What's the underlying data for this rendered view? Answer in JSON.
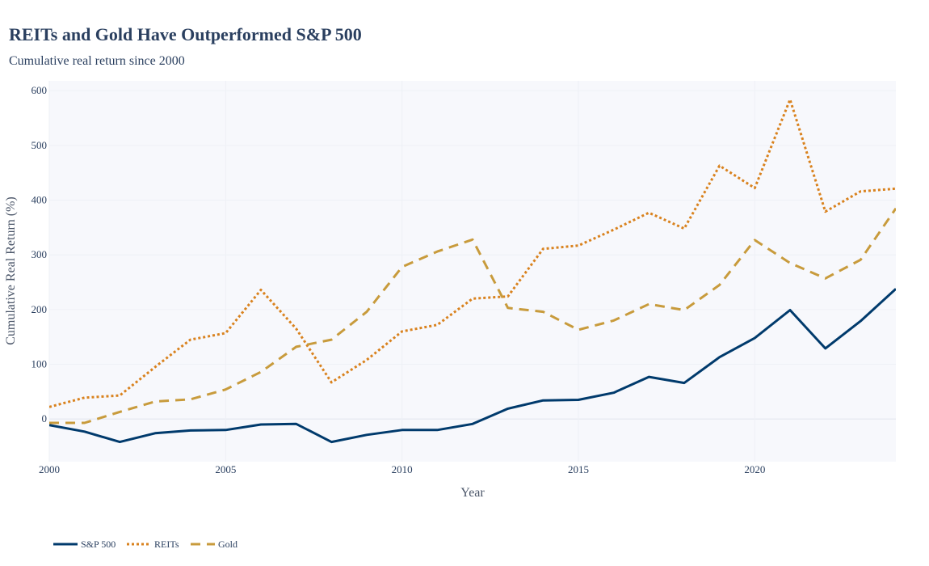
{
  "chart_data": {
    "type": "line",
    "title": "REITs and Gold Have Outperformed S&P 500",
    "subtitle": "Cumulative real return since 2000",
    "xlabel": "Year",
    "ylabel": "Cumulative Real Return (%)",
    "xlim": [
      2000,
      2024
    ],
    "ylim": [
      -78,
      618
    ],
    "x_ticks": [
      2000,
      2005,
      2010,
      2015,
      2020
    ],
    "y_ticks": [
      0,
      100,
      200,
      300,
      400,
      500,
      600
    ],
    "grid": true,
    "legend_position": "bottom-left",
    "x": [
      2000,
      2001,
      2002,
      2003,
      2004,
      2005,
      2006,
      2007,
      2008,
      2009,
      2010,
      2011,
      2012,
      2013,
      2014,
      2015,
      2016,
      2017,
      2018,
      2019,
      2020,
      2021,
      2022,
      2023,
      2024
    ],
    "series": [
      {
        "name": "S&P 500",
        "color": "#003a6c",
        "dash": "solid",
        "values": [
          -11,
          -23,
          -42,
          -26,
          -21,
          -20,
          -10,
          -9,
          -42,
          -29,
          -20,
          -20,
          -9,
          19,
          34,
          35,
          48,
          77,
          66,
          113,
          148,
          199,
          129,
          179,
          238
        ]
      },
      {
        "name": "REITs",
        "color": "#d9821e",
        "dash": "dot",
        "values": [
          22,
          39,
          43,
          95,
          145,
          157,
          236,
          165,
          67,
          108,
          160,
          172,
          220,
          224,
          311,
          317,
          346,
          377,
          348,
          463,
          422,
          584,
          379,
          416,
          421
        ]
      },
      {
        "name": "Gold",
        "color": "#c89b3c",
        "dash": "dash",
        "values": [
          -7,
          -7,
          13,
          32,
          36,
          54,
          86,
          132,
          145,
          196,
          278,
          306,
          328,
          203,
          196,
          163,
          180,
          210,
          199,
          245,
          327,
          285,
          257,
          291,
          385
        ]
      }
    ]
  }
}
